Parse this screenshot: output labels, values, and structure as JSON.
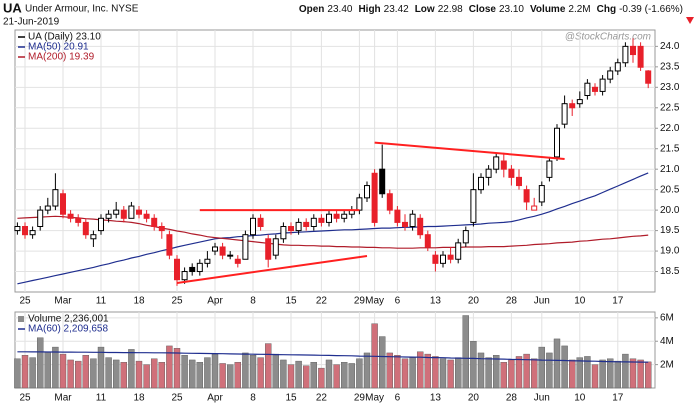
{
  "header": {
    "symbol": "UA",
    "name": "Under Armour, Inc. NYSE",
    "date": "21-Jun-2019",
    "quote": [
      {
        "label": "Open",
        "value": "23.40"
      },
      {
        "label": "High",
        "value": "23.42"
      },
      {
        "label": "Low",
        "value": "22.98"
      },
      {
        "label": "Close",
        "value": "23.10"
      },
      {
        "label": "Volume",
        "value": "2.2M"
      },
      {
        "label": "Chg",
        "value": "-0.39 (-1.66%)"
      }
    ],
    "watermark": "@StockCharts.com"
  },
  "chart_data": [
    {
      "type": "candlestick",
      "legend_label": "UA (Daily) 23.10",
      "legend_color": "#000000",
      "categories": [
        null,
        "25",
        null,
        null,
        null,
        null,
        "Mar",
        null,
        null,
        null,
        null,
        "11",
        null,
        null,
        null,
        null,
        "18",
        null,
        null,
        null,
        null,
        "25",
        null,
        null,
        null,
        null,
        "Apr",
        null,
        null,
        null,
        null,
        "8",
        null,
        null,
        null,
        null,
        "15",
        null,
        null,
        null,
        "22",
        null,
        null,
        null,
        null,
        "29",
        null,
        "May",
        null,
        null,
        "6",
        null,
        null,
        null,
        null,
        "13",
        null,
        null,
        null,
        null,
        "20",
        null,
        null,
        null,
        null,
        "28",
        null,
        null,
        null,
        "Jun",
        null,
        null,
        null,
        null,
        "10",
        null,
        null,
        null,
        null,
        "17",
        null,
        null,
        null,
        null
      ],
      "open": [
        19.5,
        19.6,
        19.4,
        19.6,
        20.0,
        20.1,
        20.4,
        19.9,
        19.8,
        19.7,
        19.3,
        19.5,
        19.8,
        19.9,
        20.0,
        19.8,
        20.0,
        19.9,
        19.8,
        19.6,
        19.4,
        18.8,
        18.3,
        18.6,
        18.5,
        18.7,
        19.0,
        19.1,
        18.9,
        18.8,
        18.8,
        19.4,
        19.8,
        19.3,
        18.9,
        19.3,
        19.6,
        19.5,
        19.7,
        19.6,
        19.8,
        19.7,
        19.9,
        19.8,
        19.9,
        20.0,
        20.3,
        20.9,
        21.0,
        20.4,
        20.0,
        19.7,
        19.6,
        19.8,
        19.4,
        18.9,
        18.7,
        18.9,
        18.8,
        19.2,
        19.7,
        20.5,
        20.8,
        21.0,
        21.2,
        21.0,
        20.8,
        20.5,
        20.0,
        20.2,
        20.8,
        21.3,
        22.1,
        22.6,
        22.6,
        22.8,
        23.0,
        22.9,
        23.2,
        23.4,
        23.6,
        24.0,
        24.0,
        23.4
      ],
      "high": [
        19.7,
        19.7,
        19.6,
        20.1,
        20.3,
        20.9,
        20.5,
        20.0,
        19.9,
        19.8,
        19.5,
        19.9,
        20.0,
        20.2,
        20.1,
        20.2,
        20.1,
        20.0,
        19.9,
        19.7,
        19.5,
        18.9,
        18.6,
        18.7,
        18.8,
        19.0,
        19.2,
        19.2,
        19.0,
        18.9,
        19.5,
        19.9,
        19.9,
        19.4,
        19.4,
        19.7,
        19.7,
        19.8,
        19.8,
        19.9,
        19.9,
        20.0,
        20.0,
        20.0,
        20.1,
        20.4,
        20.7,
        21.0,
        21.6,
        20.5,
        20.1,
        19.9,
        20.0,
        19.9,
        19.5,
        19.0,
        19.0,
        19.1,
        19.3,
        19.6,
        20.9,
        20.9,
        21.1,
        21.4,
        21.4,
        21.1,
        21.0,
        20.6,
        20.3,
        20.7,
        21.3,
        22.1,
        22.8,
        22.7,
        22.9,
        23.2,
        23.1,
        23.3,
        23.5,
        23.7,
        24.1,
        24.2,
        24.1,
        23.42
      ],
      "low": [
        19.4,
        19.3,
        19.3,
        19.5,
        19.9,
        20.0,
        19.8,
        19.7,
        19.6,
        19.3,
        19.1,
        19.4,
        19.7,
        19.8,
        19.7,
        19.8,
        19.8,
        19.7,
        19.5,
        19.3,
        18.8,
        18.15,
        18.2,
        18.4,
        18.4,
        18.6,
        18.9,
        18.8,
        18.8,
        18.6,
        18.8,
        19.3,
        19.5,
        18.6,
        18.8,
        19.2,
        19.4,
        19.4,
        19.5,
        19.5,
        19.6,
        19.6,
        19.7,
        19.7,
        19.8,
        19.9,
        20.2,
        19.6,
        20.3,
        19.9,
        19.6,
        19.5,
        19.5,
        19.3,
        19.0,
        18.5,
        18.6,
        18.7,
        18.7,
        19.1,
        19.6,
        20.4,
        20.6,
        20.9,
        20.8,
        20.6,
        20.5,
        20.0,
        20.0,
        20.1,
        20.7,
        21.2,
        22.0,
        22.3,
        22.5,
        22.7,
        22.8,
        22.8,
        23.1,
        23.3,
        23.5,
        23.6,
        23.4,
        22.98
      ],
      "close": [
        19.6,
        19.4,
        19.5,
        20.0,
        20.1,
        20.5,
        19.9,
        19.8,
        19.7,
        19.4,
        19.4,
        19.8,
        19.9,
        20.0,
        19.8,
        20.1,
        19.9,
        19.8,
        19.6,
        19.5,
        18.9,
        18.3,
        18.5,
        18.5,
        18.7,
        18.8,
        19.1,
        18.9,
        18.9,
        18.7,
        19.4,
        19.8,
        19.6,
        18.8,
        19.3,
        19.6,
        19.5,
        19.7,
        19.6,
        19.8,
        19.7,
        19.9,
        19.8,
        19.9,
        20.0,
        20.3,
        20.6,
        19.7,
        20.4,
        20.0,
        19.7,
        19.6,
        19.9,
        19.4,
        19.1,
        18.7,
        18.9,
        18.8,
        19.2,
        19.5,
        20.5,
        20.8,
        21.0,
        21.3,
        21.0,
        20.8,
        20.6,
        20.2,
        20.1,
        20.6,
        21.2,
        22.0,
        22.6,
        22.5,
        22.7,
        23.1,
        22.9,
        23.2,
        23.4,
        23.6,
        24.0,
        23.8,
        23.49,
        23.1
      ],
      "up_color": "#000000",
      "down_color": "#e8202a",
      "series": [
        {
          "name": "MA(50) 20.91",
          "color": "#1f2e8f",
          "values": [
            18.2,
            18.24,
            18.28,
            18.32,
            18.36,
            18.4,
            18.44,
            18.48,
            18.52,
            18.56,
            18.6,
            18.65,
            18.69,
            18.74,
            18.78,
            18.83,
            18.87,
            18.92,
            18.96,
            19.01,
            19.05,
            19.1,
            19.14,
            19.18,
            19.22,
            19.26,
            19.3,
            19.32,
            19.33,
            19.35,
            19.36,
            19.38,
            19.39,
            19.41,
            19.42,
            19.44,
            19.45,
            19.46,
            19.47,
            19.48,
            19.49,
            19.5,
            19.51,
            19.52,
            19.52,
            19.53,
            19.54,
            19.55,
            19.56,
            19.56,
            19.57,
            19.58,
            19.58,
            19.59,
            19.6,
            19.6,
            19.61,
            19.62,
            19.63,
            19.64,
            19.65,
            19.66,
            19.68,
            19.69,
            19.7,
            19.72,
            19.76,
            19.81,
            19.85,
            19.9,
            19.96,
            20.03,
            20.09,
            20.16,
            20.22,
            20.29,
            20.35,
            20.43,
            20.51,
            20.59,
            20.67,
            20.75,
            20.83,
            20.91
          ]
        },
        {
          "name": "MA(200) 19.39",
          "color": "#b01c2a",
          "values": [
            19.8,
            19.81,
            19.82,
            19.83,
            19.84,
            19.85,
            19.84,
            19.82,
            19.81,
            19.79,
            19.78,
            19.76,
            19.75,
            19.73,
            19.72,
            19.7,
            19.67,
            19.63,
            19.6,
            19.56,
            19.53,
            19.49,
            19.46,
            19.42,
            19.39,
            19.35,
            19.33,
            19.31,
            19.29,
            19.27,
            19.25,
            19.23,
            19.21,
            19.19,
            19.17,
            19.15,
            19.14,
            19.14,
            19.13,
            19.13,
            19.12,
            19.12,
            19.11,
            19.11,
            19.1,
            19.1,
            19.09,
            19.09,
            19.08,
            19.08,
            19.07,
            19.07,
            19.07,
            19.08,
            19.08,
            19.08,
            19.09,
            19.09,
            19.09,
            19.1,
            19.1,
            19.1,
            19.11,
            19.11,
            19.11,
            19.12,
            19.13,
            19.14,
            19.16,
            19.17,
            19.18,
            19.2,
            19.21,
            19.22,
            19.24,
            19.25,
            19.27,
            19.29,
            19.3,
            19.32,
            19.34,
            19.36,
            19.37,
            19.39
          ]
        }
      ],
      "trendline_color": "#ff2020",
      "trendlines": [
        {
          "x": [
            47,
            72
          ],
          "y": [
            21.65,
            21.25
          ]
        },
        {
          "x": [
            21,
            46
          ],
          "y": [
            18.22,
            18.88
          ]
        },
        {
          "x": [
            24,
            45
          ],
          "y": [
            20.0,
            20.0
          ]
        }
      ],
      "ylim": [
        18.0,
        24.4
      ],
      "yticks": [
        {
          "value": 18.5,
          "label": "18.5"
        },
        {
          "value": 19,
          "label": "19.0"
        },
        {
          "value": 19.5,
          "label": "19.5"
        },
        {
          "value": 20,
          "label": "20.0"
        },
        {
          "value": 20.5,
          "label": "20.5"
        },
        {
          "value": 21,
          "label": "21.0"
        },
        {
          "value": 21.5,
          "label": "21.5"
        },
        {
          "value": 22,
          "label": "22.0"
        },
        {
          "value": 22.5,
          "label": "22.5"
        },
        {
          "value": 23,
          "label": "23.0"
        },
        {
          "value": 23.5,
          "label": "23.5"
        },
        {
          "value": 24,
          "label": "24.0"
        }
      ],
      "grid": true
    },
    {
      "type": "bar",
      "legend_label": "Volume 2,236,001",
      "categories": [
        null,
        "25",
        null,
        null,
        null,
        null,
        "Mar",
        null,
        null,
        null,
        null,
        "11",
        null,
        null,
        null,
        null,
        "18",
        null,
        null,
        null,
        null,
        "25",
        null,
        null,
        null,
        null,
        "Apr",
        null,
        null,
        null,
        null,
        "8",
        null,
        null,
        null,
        null,
        "15",
        null,
        null,
        null,
        "22",
        null,
        null,
        null,
        null,
        "29",
        null,
        "May",
        null,
        null,
        "6",
        null,
        null,
        null,
        null,
        "13",
        null,
        null,
        null,
        null,
        "20",
        null,
        null,
        null,
        null,
        "28",
        null,
        null,
        null,
        "Jun",
        null,
        null,
        null,
        null,
        "10",
        null,
        null,
        null,
        null,
        "17",
        null,
        null,
        null,
        null
      ],
      "values": [
        2.5,
        2.8,
        2.6,
        4.3,
        3.1,
        3.5,
        2.9,
        2.4,
        2.3,
        2.8,
        2.5,
        3.5,
        2.6,
        2.4,
        2.2,
        3.3,
        2.3,
        2.0,
        2.5,
        2.2,
        3.6,
        3.4,
        2.8,
        2.4,
        2.2,
        2.6,
        2.9,
        2.1,
        2.0,
        2.2,
        3.0,
        2.8,
        2.6,
        3.8,
        2.9,
        2.4,
        2.0,
        2.3,
        1.9,
        2.2,
        1.7,
        2.4,
        2.0,
        2.2,
        2.1,
        2.5,
        3.0,
        5.5,
        4.4,
        3.0,
        2.8,
        2.5,
        2.6,
        3.1,
        2.9,
        2.7,
        2.5,
        2.4,
        2.6,
        6.2,
        4.0,
        3.0,
        2.6,
        2.8,
        2.2,
        2.4,
        2.7,
        2.9,
        2.5,
        3.5,
        3.0,
        4.2,
        3.6,
        2.4,
        2.6,
        2.7,
        2.0,
        2.4,
        2.5,
        2.3,
        2.9,
        2.5,
        2.4,
        2.236001
      ],
      "up_color": "#8c8c8c",
      "down_color": "#d0707a",
      "legend_color": "#8c8c8c",
      "series": [
        {
          "name": "MA(60) 2,209,658",
          "color": "#1f2e8f",
          "values": [
            3.1,
            3.1,
            3.09,
            3.09,
            3.08,
            3.08,
            3.07,
            3.07,
            3.06,
            3.06,
            3.05,
            3.05,
            3.04,
            3.04,
            3.03,
            3.03,
            3.02,
            3.02,
            3.01,
            3.01,
            3.0,
            2.99,
            2.98,
            2.97,
            2.96,
            2.95,
            2.94,
            2.93,
            2.92,
            2.91,
            2.9,
            2.89,
            2.88,
            2.87,
            2.86,
            2.85,
            2.84,
            2.83,
            2.82,
            2.81,
            2.8,
            2.79,
            2.77,
            2.76,
            2.75,
            2.73,
            2.72,
            2.71,
            2.69,
            2.68,
            2.67,
            2.65,
            2.64,
            2.63,
            2.61,
            2.6,
            2.59,
            2.57,
            2.56,
            2.54,
            2.53,
            2.51,
            2.5,
            2.48,
            2.47,
            2.45,
            2.44,
            2.42,
            2.41,
            2.39,
            2.38,
            2.36,
            2.35,
            2.33,
            2.32,
            2.3,
            2.29,
            2.27,
            2.26,
            2.24,
            2.23,
            2.22,
            2.215,
            2.209658
          ]
        }
      ],
      "ylim": [
        0,
        6.5
      ],
      "yticks": [
        {
          "value": 2,
          "label": "2M"
        },
        {
          "value": 4,
          "label": "4M"
        },
        {
          "value": 6,
          "label": "6M"
        }
      ],
      "grid": true
    }
  ]
}
